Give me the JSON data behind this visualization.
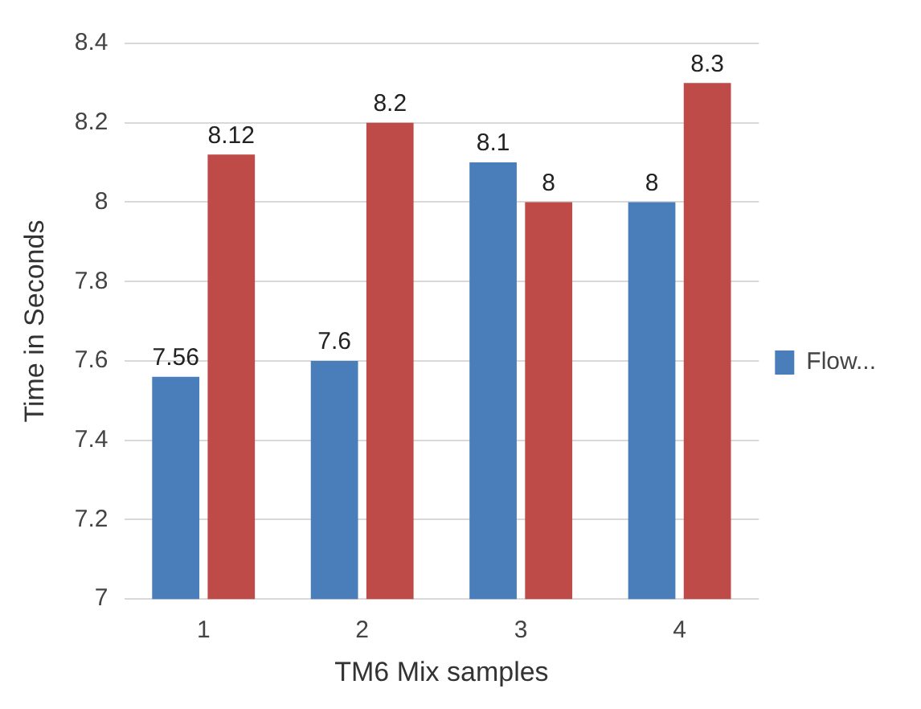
{
  "chart_data": {
    "type": "bar",
    "xlabel": "TM6 Mix samples",
    "ylabel": "Time in Seconds",
    "categories": [
      "1",
      "2",
      "3",
      "4"
    ],
    "series": [
      {
        "name": "Flow...",
        "color": "#4a7ebb",
        "values": [
          7.56,
          7.6,
          8.1,
          8
        ]
      },
      {
        "color": "#be4b48",
        "values": [
          8.12,
          8.2,
          8,
          8.3
        ]
      }
    ],
    "ylim": [
      7,
      8.4
    ],
    "yticks": [
      7,
      7.2,
      7.4,
      7.6,
      7.8,
      8,
      8.2,
      8.4
    ],
    "grid": "y",
    "legend": "right",
    "data_labels": true
  }
}
